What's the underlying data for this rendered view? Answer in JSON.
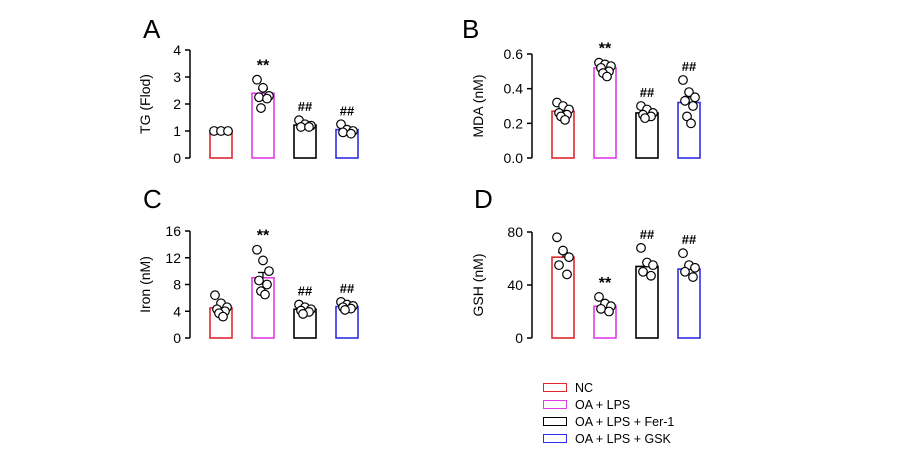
{
  "colors": {
    "NC": "#e0282e",
    "OA + LPS": "#e23ce6",
    "OA + LPS + Fer-1": "#000000",
    "OA + LPS + GSK": "#2e2ee6"
  },
  "legend": {
    "entries": [
      "NC",
      "OA + LPS",
      "OA + LPS + Fer-1",
      "OA + LPS + GSK"
    ]
  },
  "chart_data": [
    {
      "panel": "A",
      "type": "bar",
      "ylabel": "TG (Flod)",
      "ylim": [
        0,
        4
      ],
      "yticks": [
        "0",
        "1",
        "2",
        "3",
        "4"
      ],
      "categories": [
        "NC",
        "OA + LPS",
        "OA + LPS + Fer-1",
        "OA + LPS + GSK"
      ],
      "values": [
        1.0,
        2.4,
        1.22,
        1.05
      ],
      "errors": [
        0.0,
        0.15,
        0.07,
        0.08
      ],
      "points": [
        [
          1.0,
          1.0,
          1.0
        ],
        [
          2.9,
          2.6,
          2.3,
          2.25,
          2.2,
          1.85
        ],
        [
          1.4,
          1.25,
          1.2,
          1.15,
          1.15
        ],
        [
          1.25,
          1.05,
          1.0,
          0.95,
          0.9
        ]
      ],
      "annotations": [
        "",
        "**",
        "##",
        "##"
      ]
    },
    {
      "panel": "B",
      "type": "bar",
      "ylabel": "MDA (nM)",
      "ylim": [
        0,
        0.6
      ],
      "yticks": [
        "0.0",
        "0.2",
        "0.4",
        "0.6"
      ],
      "categories": [
        "NC",
        "OA + LPS",
        "OA + LPS + Fer-1",
        "OA + LPS + GSK"
      ],
      "values": [
        0.27,
        0.52,
        0.26,
        0.32
      ],
      "errors": [
        0.015,
        0.015,
        0.012,
        0.035
      ],
      "points": [
        [
          0.32,
          0.3,
          0.28,
          0.26,
          0.25,
          0.24,
          0.22
        ],
        [
          0.55,
          0.54,
          0.53,
          0.52,
          0.5,
          0.49,
          0.47
        ],
        [
          0.3,
          0.28,
          0.26,
          0.25,
          0.24,
          0.23
        ],
        [
          0.45,
          0.38,
          0.35,
          0.33,
          0.3,
          0.24,
          0.2
        ]
      ],
      "annotations": [
        "",
        "**",
        "##",
        "##"
      ]
    },
    {
      "panel": "C",
      "type": "bar",
      "ylabel": "Iron (nM)",
      "ylim": [
        0,
        16
      ],
      "yticks": [
        "0",
        "4",
        "8",
        "12",
        "16"
      ],
      "categories": [
        "NC",
        "OA + LPS",
        "OA + LPS + Fer-1",
        "OA + LPS + GSK"
      ],
      "values": [
        4.5,
        9.0,
        4.3,
        4.7
      ],
      "errors": [
        0.4,
        0.8,
        0.25,
        0.2
      ],
      "points": [
        [
          6.4,
          5.2,
          4.6,
          4.3,
          4.0,
          3.7,
          3.2
        ],
        [
          13.2,
          11.6,
          10.0,
          8.6,
          8.0,
          7.0,
          6.5
        ],
        [
          5.0,
          4.6,
          4.3,
          4.1,
          3.9,
          3.6
        ],
        [
          5.4,
          5.0,
          4.8,
          4.6,
          4.4,
          4.2
        ]
      ],
      "annotations": [
        "",
        "**",
        "##",
        "##"
      ]
    },
    {
      "panel": "D",
      "type": "bar",
      "ylabel": "GSH (nM)",
      "ylim": [
        0,
        80
      ],
      "yticks": [
        "0",
        "40",
        "80"
      ],
      "categories": [
        "NC",
        "OA + LPS",
        "OA + LPS + Fer-1",
        "OA + LPS + GSK"
      ],
      "values": [
        61,
        24,
        54,
        52
      ],
      "errors": [
        3.5,
        1.5,
        3.0,
        2.5
      ],
      "points": [
        [
          76,
          66,
          61,
          55,
          48
        ],
        [
          31,
          26,
          24,
          22,
          20
        ],
        [
          68,
          57,
          55,
          50,
          47
        ],
        [
          64,
          55,
          53,
          50,
          46
        ]
      ],
      "annotations": [
        "",
        "**",
        "##",
        "##"
      ]
    }
  ]
}
